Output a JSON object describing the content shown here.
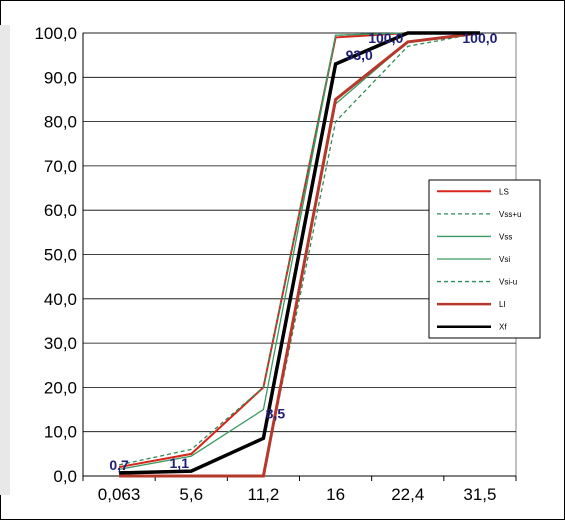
{
  "chart_data": {
    "type": "line",
    "title": "",
    "xlabel": "",
    "ylabel": "",
    "categories": [
      "0,063",
      "5,6",
      "11,2",
      "16",
      "22,4",
      "31,5"
    ],
    "ylim": [
      0,
      100
    ],
    "yticks": [
      "0,0",
      "10,0",
      "20,0",
      "30,0",
      "40,0",
      "50,0",
      "60,0",
      "70,0",
      "80,0",
      "90,0",
      "100,0"
    ],
    "grid": "horizontal",
    "legend_position": "right",
    "series": [
      {
        "name": "LS",
        "color": "#d9261c",
        "dash": "solid",
        "width": 2,
        "values": [
          2.0,
          5.0,
          20.0,
          99.0,
          100.0,
          100.0
        ]
      },
      {
        "name": "Vss+u",
        "color": "#2e8b57",
        "dash": "dashed",
        "width": 1.3,
        "values": [
          2.5,
          6.0,
          20.0,
          99.5,
          100.0,
          100.0
        ]
      },
      {
        "name": "Vss",
        "color": "#3a9a62",
        "dash": "solid",
        "width": 1.3,
        "values": [
          1.5,
          4.5,
          15.0,
          99.5,
          100.0,
          100.0
        ]
      },
      {
        "name": "Vsi",
        "color": "#3a9a62",
        "dash": "solid",
        "width": 1.3,
        "values": [
          0.0,
          0.0,
          0.0,
          84.0,
          98.0,
          100.0
        ]
      },
      {
        "name": "Vsi-u",
        "color": "#2e8b57",
        "dash": "dashed",
        "width": 1.3,
        "values": [
          0.0,
          0.0,
          0.0,
          80.0,
          97.0,
          100.0
        ]
      },
      {
        "name": "LI",
        "color": "#b5382a",
        "dash": "solid",
        "width": 3,
        "values": [
          0.0,
          0.0,
          0.0,
          85.0,
          98.0,
          100.0
        ]
      },
      {
        "name": "Xf",
        "color": "#000000",
        "dash": "solid",
        "width": 3.5,
        "values": [
          0.7,
          1.1,
          8.5,
          93.0,
          100.0,
          100.0
        ]
      }
    ],
    "data_labels": [
      "0,7",
      "1,1",
      "8,5",
      "93,0",
      "100,0",
      "100,0"
    ]
  }
}
